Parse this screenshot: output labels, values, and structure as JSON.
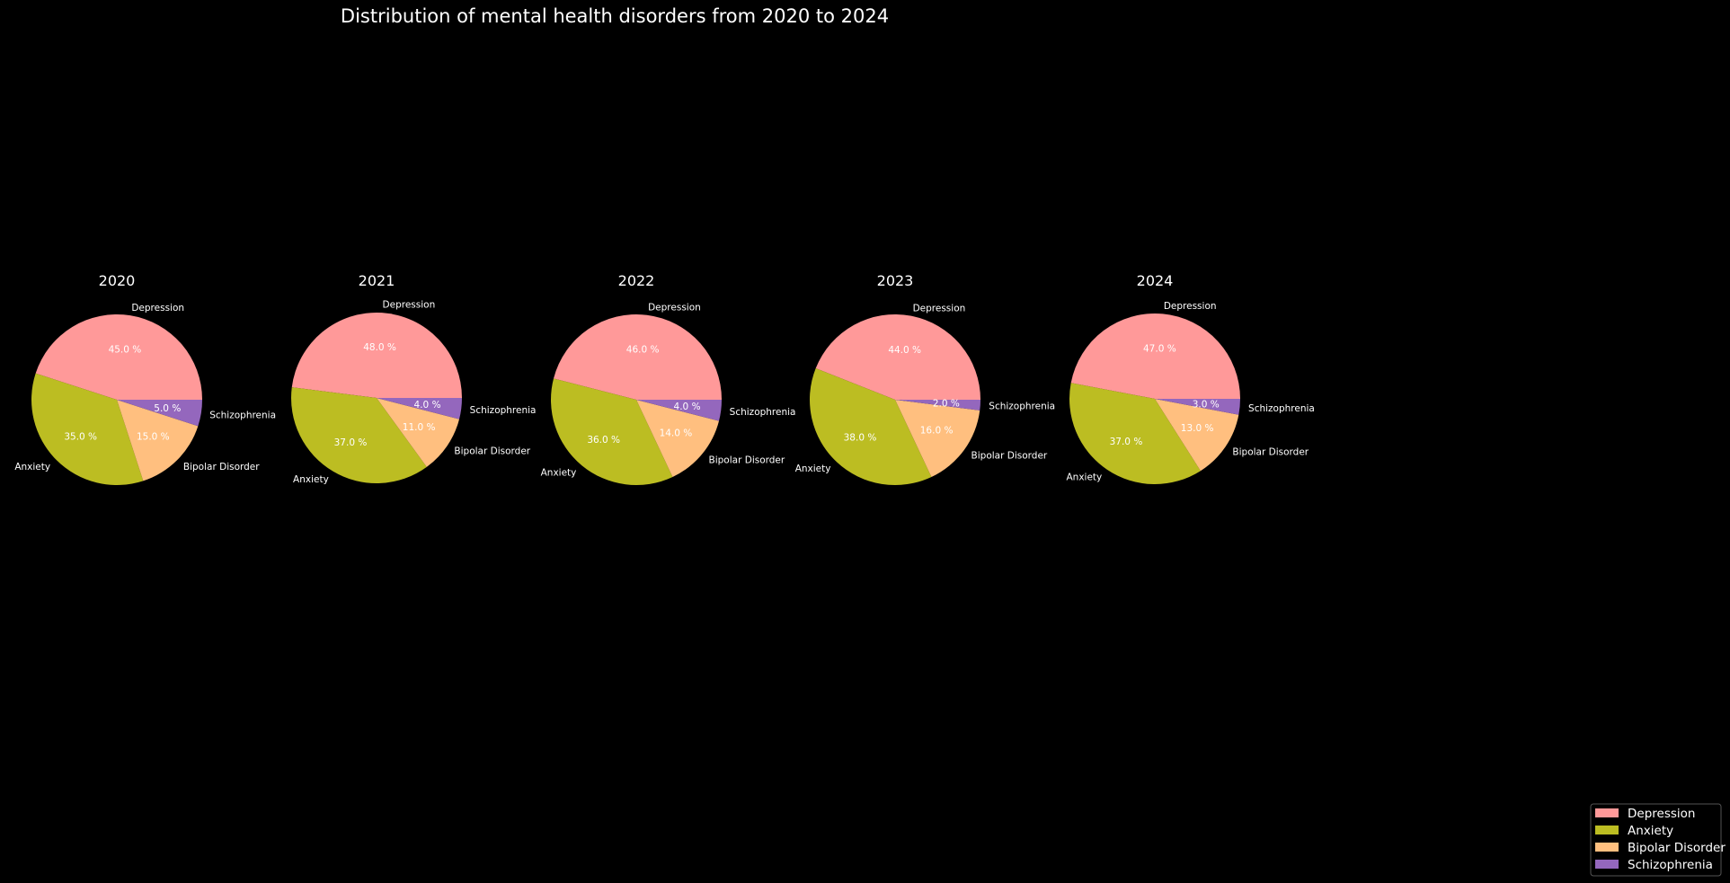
{
  "chart_data": {
    "type": "pie",
    "title": "Distribution of mental health disorders from 2020 to 2024",
    "categories": [
      "Depression",
      "Anxiety",
      "Bipolar Disorder",
      "Schizophrenia"
    ],
    "colors": [
      "#ff9999",
      "#bcbd22",
      "#ffbf7f",
      "#9467bd"
    ],
    "pct_format": "{v} %",
    "legend_position": "lower-right",
    "legend": [
      "Depression",
      "Anxiety",
      "Bipolar Disorder",
      "Schizophrenia"
    ],
    "pies": [
      {
        "title": "2020",
        "values": [
          45.0,
          35.0,
          15.0,
          5.0
        ]
      },
      {
        "title": "2021",
        "values": [
          48.0,
          37.0,
          11.0,
          4.0
        ]
      },
      {
        "title": "2022",
        "values": [
          46.0,
          36.0,
          14.0,
          4.0
        ]
      },
      {
        "title": "2023",
        "values": [
          44.0,
          38.0,
          16.0,
          2.0
        ]
      },
      {
        "title": "2024",
        "values": [
          47.0,
          37.0,
          13.0,
          3.0
        ]
      }
    ]
  }
}
